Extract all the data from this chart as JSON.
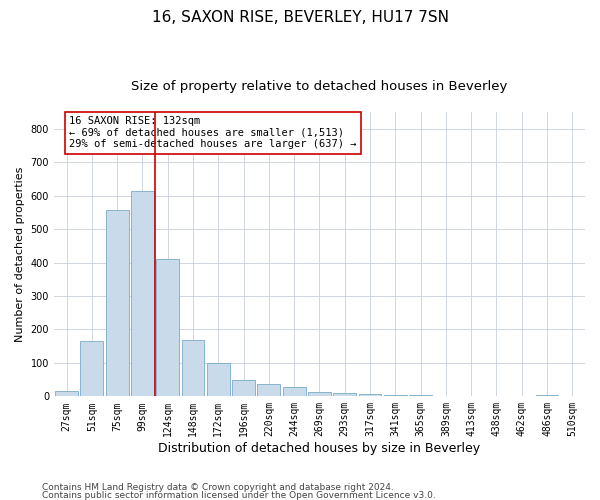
{
  "title1": "16, SAXON RISE, BEVERLEY, HU17 7SN",
  "title2": "Size of property relative to detached houses in Beverley",
  "xlabel": "Distribution of detached houses by size in Beverley",
  "ylabel": "Number of detached properties",
  "footnote1": "Contains HM Land Registry data © Crown copyright and database right 2024.",
  "footnote2": "Contains public sector information licensed under the Open Government Licence v3.0.",
  "bar_labels": [
    "27sqm",
    "51sqm",
    "75sqm",
    "99sqm",
    "124sqm",
    "148sqm",
    "172sqm",
    "196sqm",
    "220sqm",
    "244sqm",
    "269sqm",
    "293sqm",
    "317sqm",
    "341sqm",
    "365sqm",
    "389sqm",
    "413sqm",
    "438sqm",
    "462sqm",
    "486sqm",
    "510sqm"
  ],
  "bar_values": [
    15,
    165,
    558,
    615,
    410,
    170,
    100,
    50,
    38,
    28,
    12,
    10,
    7,
    5,
    4,
    2,
    1,
    0,
    0,
    5,
    0
  ],
  "bar_color": "#c9daea",
  "bar_edge_color": "#7aaac8",
  "grid_color": "#c8d0dc",
  "vline_color": "#cc0000",
  "annotation_text": "16 SAXON RISE: 132sqm\n← 69% of detached houses are smaller (1,513)\n29% of semi-detached houses are larger (637) →",
  "annotation_box_color": "#ffffff",
  "annotation_box_edge": "#cc0000",
  "ylim": [
    0,
    850
  ],
  "yticks": [
    0,
    100,
    200,
    300,
    400,
    500,
    600,
    700,
    800
  ],
  "title1_fontsize": 11,
  "title2_fontsize": 9.5,
  "xlabel_fontsize": 9,
  "ylabel_fontsize": 8,
  "tick_fontsize": 7,
  "footnote_fontsize": 6.5,
  "annotation_fontsize": 7.5
}
